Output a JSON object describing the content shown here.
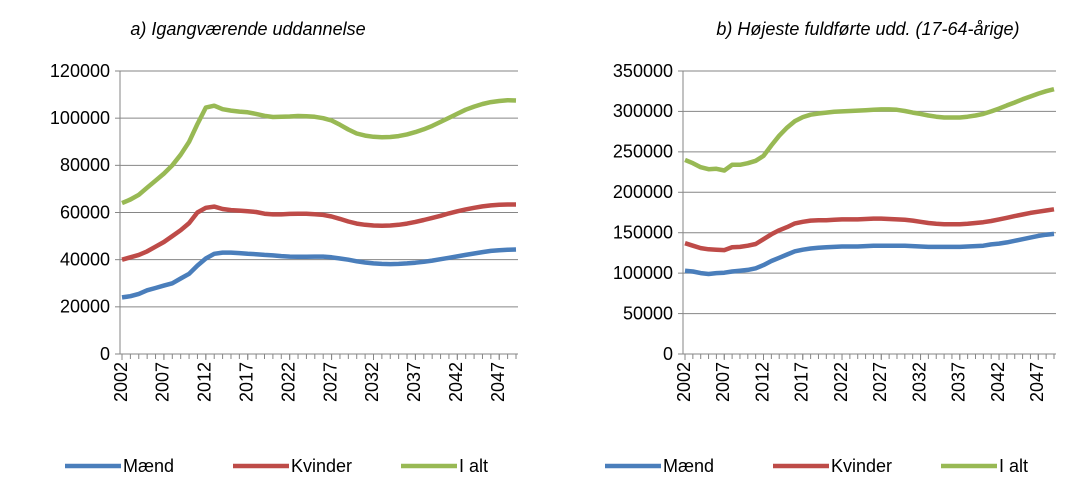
{
  "chart_data": [
    {
      "type": "line",
      "title": "a) Igangværende uddannelse",
      "x": [
        2002,
        2003,
        2004,
        2005,
        2006,
        2007,
        2008,
        2009,
        2010,
        2011,
        2012,
        2013,
        2014,
        2015,
        2016,
        2017,
        2018,
        2019,
        2020,
        2021,
        2022,
        2023,
        2024,
        2025,
        2026,
        2027,
        2028,
        2029,
        2030,
        2031,
        2032,
        2033,
        2034,
        2035,
        2036,
        2037,
        2038,
        2039,
        2040,
        2041,
        2042,
        2043,
        2044,
        2045,
        2046,
        2047,
        2048,
        2049
      ],
      "xlim": [
        2002,
        2049
      ],
      "xticks": [
        2002,
        2007,
        2012,
        2017,
        2022,
        2027,
        2032,
        2037,
        2042,
        2047
      ],
      "ylim": [
        0,
        120000
      ],
      "yticks": [
        0,
        20000,
        40000,
        60000,
        80000,
        100000,
        120000
      ],
      "grid": true,
      "series": [
        {
          "name": "Mænd",
          "color": "#4a7ebb",
          "values": [
            24000,
            24500,
            25500,
            27000,
            28000,
            29000,
            30000,
            32000,
            34000,
            37500,
            40500,
            42500,
            43000,
            43000,
            42800,
            42500,
            42300,
            42000,
            41800,
            41500,
            41300,
            41200,
            41200,
            41300,
            41300,
            41000,
            40500,
            40000,
            39300,
            38800,
            38400,
            38200,
            38100,
            38200,
            38400,
            38700,
            39100,
            39600,
            40200,
            40800,
            41400,
            42000,
            42600,
            43200,
            43700,
            44000,
            44200,
            44300
          ]
        },
        {
          "name": "Kvinder",
          "color": "#be4b48",
          "values": [
            40000,
            41000,
            42000,
            43500,
            45500,
            47500,
            50000,
            52500,
            55500,
            60000,
            62000,
            62500,
            61500,
            61000,
            60800,
            60500,
            60200,
            59500,
            59200,
            59200,
            59400,
            59500,
            59500,
            59300,
            59000,
            58300,
            57300,
            56200,
            55300,
            54800,
            54500,
            54400,
            54500,
            54800,
            55300,
            56000,
            56800,
            57700,
            58600,
            59600,
            60500,
            61300,
            62000,
            62600,
            63000,
            63300,
            63400,
            63400
          ]
        },
        {
          "name": "I alt",
          "color": "#98b954",
          "values": [
            64000,
            65500,
            67500,
            70500,
            73500,
            76500,
            80000,
            84500,
            90000,
            97500,
            104500,
            105300,
            103800,
            103200,
            102800,
            102500,
            101800,
            101000,
            100500,
            100600,
            100700,
            100900,
            100800,
            100600,
            100000,
            99000,
            97200,
            95200,
            93500,
            92600,
            92100,
            91900,
            92000,
            92400,
            93100,
            94100,
            95300,
            96700,
            98400,
            100100,
            101900,
            103600,
            104900,
            106000,
            106800,
            107300,
            107600,
            107500
          ]
        }
      ]
    },
    {
      "type": "line",
      "title": "b) Højeste fuldførte udd. (17-64-årige)",
      "x": [
        2002,
        2003,
        2004,
        2005,
        2006,
        2007,
        2008,
        2009,
        2010,
        2011,
        2012,
        2013,
        2014,
        2015,
        2016,
        2017,
        2018,
        2019,
        2020,
        2021,
        2022,
        2023,
        2024,
        2025,
        2026,
        2027,
        2028,
        2029,
        2030,
        2031,
        2032,
        2033,
        2034,
        2035,
        2036,
        2037,
        2038,
        2039,
        2040,
        2041,
        2042,
        2043,
        2044,
        2045,
        2046,
        2047,
        2048,
        2049
      ],
      "xlim": [
        2002,
        2049
      ],
      "xticks": [
        2002,
        2007,
        2012,
        2017,
        2022,
        2027,
        2032,
        2037,
        2042,
        2047
      ],
      "ylim": [
        0,
        350000
      ],
      "yticks": [
        0,
        50000,
        100000,
        150000,
        200000,
        250000,
        300000,
        350000
      ],
      "grid": true,
      "series": [
        {
          "name": "Mænd",
          "color": "#4a7ebb",
          "values": [
            103000,
            102000,
            100000,
            99000,
            100000,
            100500,
            102000,
            103000,
            104000,
            106000,
            110000,
            115000,
            119000,
            123000,
            127000,
            129000,
            130500,
            131500,
            132000,
            132500,
            133000,
            133000,
            133000,
            133500,
            134000,
            134000,
            134000,
            134000,
            134000,
            133500,
            133000,
            132500,
            132500,
            132500,
            132500,
            132500,
            133000,
            133500,
            134000,
            135500,
            136500,
            138000,
            140000,
            142000,
            144000,
            146000,
            147500,
            148500
          ]
        },
        {
          "name": "Kvinder",
          "color": "#be4b48",
          "values": [
            137000,
            134000,
            131000,
            129500,
            129000,
            128500,
            132000,
            132500,
            134000,
            136000,
            142000,
            148000,
            153000,
            157000,
            161500,
            163500,
            165000,
            165500,
            165500,
            166000,
            166500,
            166500,
            166500,
            167000,
            167500,
            167500,
            167000,
            166500,
            166000,
            165000,
            163500,
            162000,
            161000,
            160500,
            160500,
            160500,
            161000,
            162000,
            163000,
            164500,
            166500,
            168500,
            170500,
            172500,
            174500,
            176000,
            177500,
            179000
          ]
        },
        {
          "name": "I alt",
          "color": "#98b954",
          "values": [
            240000,
            236000,
            231000,
            228500,
            229000,
            227000,
            234000,
            234000,
            236000,
            239000,
            245000,
            258000,
            270000,
            280000,
            288000,
            293000,
            296000,
            297500,
            298500,
            299500,
            300000,
            300500,
            301000,
            301500,
            302000,
            302500,
            302500,
            302000,
            300500,
            298500,
            297000,
            295000,
            293500,
            292500,
            292500,
            292500,
            293500,
            295000,
            297000,
            300000,
            303500,
            307500,
            311000,
            315000,
            318500,
            322000,
            325000,
            327500
          ]
        }
      ]
    }
  ]
}
